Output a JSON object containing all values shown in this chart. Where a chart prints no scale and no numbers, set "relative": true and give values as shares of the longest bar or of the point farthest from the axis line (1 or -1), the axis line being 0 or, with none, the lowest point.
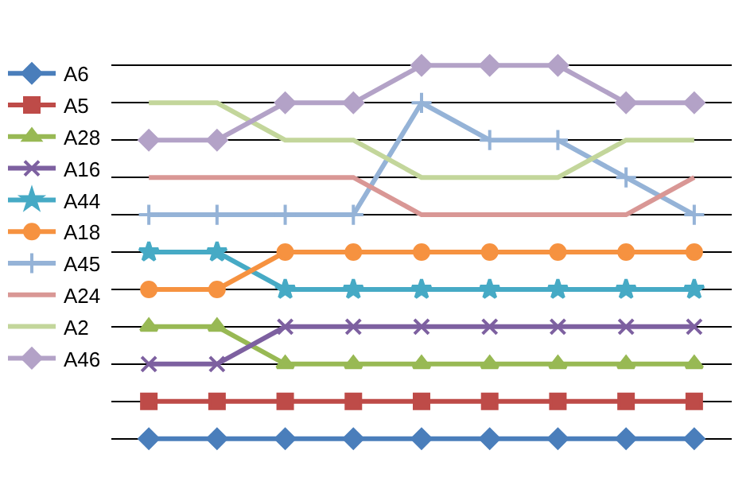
{
  "chart_data": {
    "type": "line",
    "relative": true,
    "grid": "y",
    "legend": "left",
    "line_style": "solid",
    "categories": [
      null,
      null,
      null,
      null,
      null,
      null,
      null,
      null,
      null
    ],
    "series": [
      {
        "name": "A6",
        "color": "#4a7ebb",
        "marker": "diamond",
        "values": [
          0,
          0,
          0,
          0,
          0,
          0,
          0,
          0,
          0
        ]
      },
      {
        "name": "A5",
        "color": "#be4b48",
        "marker": "square",
        "values": [
          0.1,
          0.1,
          0.1,
          0.1,
          0.1,
          0.1,
          0.1,
          0.1,
          0.1
        ]
      },
      {
        "name": "A28",
        "color": "#98b954",
        "marker": "triangle",
        "values": [
          0.3,
          0.3,
          0.2,
          0.2,
          0.2,
          0.2,
          0.2,
          0.2,
          0.2
        ]
      },
      {
        "name": "A16",
        "color": "#7d60a0",
        "marker": "cross",
        "values": [
          0.2,
          0.2,
          0.3,
          0.3,
          0.3,
          0.3,
          0.3,
          0.3,
          0.3
        ]
      },
      {
        "name": "A44",
        "color": "#46aac5",
        "marker": "star",
        "values": [
          0.5,
          0.5,
          0.4,
          0.4,
          0.4,
          0.4,
          0.4,
          0.4,
          0.4
        ]
      },
      {
        "name": "A18",
        "color": "#f69240",
        "marker": "circle",
        "values": [
          0.4,
          0.4,
          0.5,
          0.5,
          0.5,
          0.5,
          0.5,
          0.5,
          0.5
        ]
      },
      {
        "name": "A45",
        "color": "#95b3d7",
        "marker": "plus",
        "values": [
          0.6,
          0.6,
          0.6,
          0.6,
          0.9,
          0.8,
          0.8,
          0.7,
          0.6
        ]
      },
      {
        "name": "A24",
        "color": "#d99795",
        "marker": "none",
        "values": [
          0.7,
          0.7,
          0.7,
          0.7,
          0.6,
          0.6,
          0.6,
          0.6,
          0.7
        ]
      },
      {
        "name": "A2",
        "color": "#c3d69b",
        "marker": "none",
        "values": [
          0.9,
          0.9,
          0.8,
          0.8,
          0.7,
          0.7,
          0.7,
          0.8,
          0.8
        ]
      },
      {
        "name": "A46",
        "color": "#b3a2c7",
        "marker": "diamond",
        "values": [
          0.8,
          0.8,
          0.9,
          0.9,
          1,
          1,
          1,
          0.9,
          0.9
        ]
      }
    ]
  }
}
